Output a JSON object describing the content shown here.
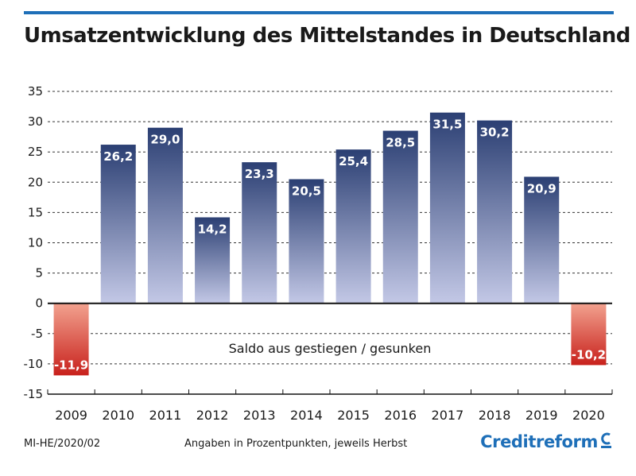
{
  "header": {
    "title": "Umsatzentwicklung des Mittelstandes in Deutschland"
  },
  "footer": {
    "code": "MI-HE/2020/02",
    "note": "Angaben in Prozentpunkten, jeweils Herbst",
    "brand": "Creditreform"
  },
  "colors": {
    "accent": "#1e6fb8",
    "positive_top": "#2b3f73",
    "positive_bottom": "#c3c8e6",
    "negative_top": "#f2a28f",
    "negative_bottom": "#c8211c",
    "text": "#1a1a1a"
  },
  "chart_data": {
    "type": "bar",
    "categories": [
      "2009",
      "2010",
      "2011",
      "2012",
      "2013",
      "2014",
      "2015",
      "2016",
      "2017",
      "2018",
      "2019",
      "2020"
    ],
    "values": [
      -11.9,
      26.2,
      29.0,
      14.2,
      23.3,
      20.5,
      25.4,
      28.5,
      31.5,
      30.2,
      20.9,
      -10.2
    ],
    "data_labels": [
      "-11,9",
      "26,2",
      "29,0",
      "14,2",
      "23,3",
      "20,5",
      "25,4",
      "28,5",
      "31,5",
      "30,2",
      "20,9",
      "-10,2"
    ],
    "annotation": "Saldo aus gestiegen / gesunken",
    "ylim": [
      -15,
      35
    ],
    "yticks": [
      35,
      30,
      25,
      20,
      15,
      10,
      5,
      0,
      -5,
      -10,
      -15
    ],
    "grid": "horizontal-dashed",
    "legend": "none",
    "xlabel": "",
    "ylabel": ""
  }
}
